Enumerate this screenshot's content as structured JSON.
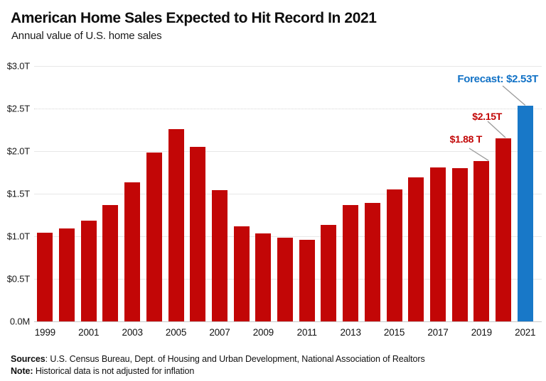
{
  "header": {
    "title": "American Home Sales Expected to Hit Record In 2021",
    "subtitle": "Annual value of U.S. home sales"
  },
  "chart_data": {
    "type": "bar",
    "title": "American Home Sales Expected to Hit Record In 2021",
    "subtitle": "Annual value of U.S. home sales",
    "unit": "trillion USD",
    "categories": [
      "1999",
      "2000",
      "2001",
      "2002",
      "2003",
      "2004",
      "2005",
      "2006",
      "2007",
      "2008",
      "2009",
      "2010",
      "2011",
      "2012",
      "2013",
      "2014",
      "2015",
      "2016",
      "2017",
      "2018",
      "2019",
      "2020",
      "2021"
    ],
    "values": [
      1.04,
      1.09,
      1.18,
      1.37,
      1.63,
      1.98,
      2.26,
      2.05,
      1.54,
      1.12,
      1.03,
      0.98,
      0.96,
      1.13,
      1.37,
      1.39,
      1.55,
      1.69,
      1.81,
      1.8,
      1.88,
      2.15,
      2.53
    ],
    "ylim": [
      0,
      3.0
    ],
    "y_ticks": [
      {
        "label": "$3.0T",
        "value": 3.0,
        "dotted": false
      },
      {
        "label": "$2.5T",
        "value": 2.5,
        "dotted": true
      },
      {
        "label": "$2.0T",
        "value": 2.0,
        "dotted": false
      },
      {
        "label": "$1.5T",
        "value": 1.5,
        "dotted": false
      },
      {
        "label": "$1.0T",
        "value": 1.0,
        "dotted": false
      },
      {
        "label": "$0.5T",
        "value": 0.5,
        "dotted": false
      },
      {
        "label": "0.0M",
        "value": 0.0,
        "dotted": false
      }
    ],
    "x_tick_labels": [
      "1999",
      "2001",
      "2003",
      "2005",
      "2007",
      "2009",
      "2011",
      "2013",
      "2015",
      "2017",
      "2019",
      "2021"
    ],
    "grid": "on",
    "legend": "none",
    "colors": {
      "bar": "#c20606",
      "forecast_bar": "#1878c8",
      "annotation_red": "#c20606",
      "annotation_blue": "#1272c6",
      "leader_line": "#9b9b9b"
    },
    "forecast_category": "2021",
    "annotations": [
      {
        "text": "Forecast: $2.53T",
        "target": "2021",
        "color": "#1272c6"
      },
      {
        "text": "$2.15T",
        "target": "2020",
        "color": "#c20606"
      },
      {
        "text": "$1.88 T",
        "target": "2019",
        "color": "#c20606"
      }
    ]
  },
  "footer": {
    "sources_label": "Sources",
    "sources_rest": ": U.S. Census Bureau, Dept. of Housing and Urban Development, National Association of Realtors",
    "note_label": "Note:",
    "note_rest": " Historical data is not adjusted for inflation"
  }
}
